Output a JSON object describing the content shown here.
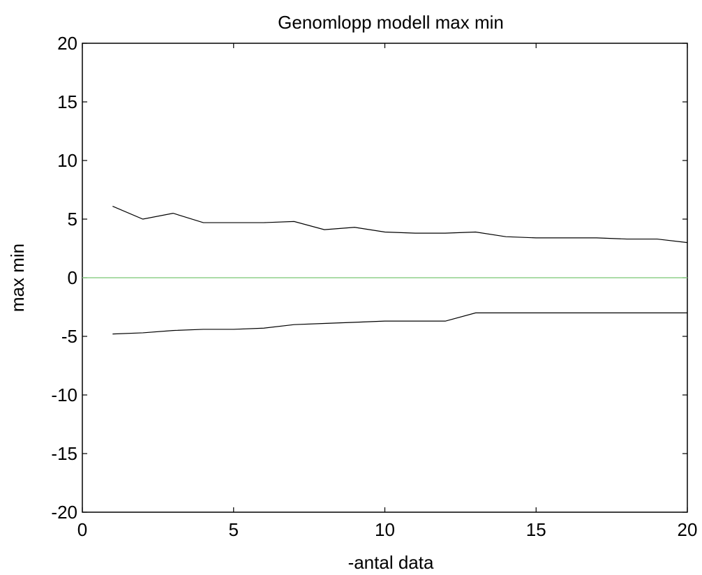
{
  "chart_data": {
    "type": "line",
    "title": "Genomlopp modell max min",
    "xlabel": "-antal data",
    "ylabel": "max min",
    "xlim": [
      0,
      20
    ],
    "ylim": [
      -20,
      20
    ],
    "xticks": [
      "0",
      "5",
      "10",
      "15",
      "20"
    ],
    "yticks": [
      "20",
      "15",
      "10",
      "5",
      "0",
      "-5",
      "-10",
      "-15",
      "-20"
    ],
    "grid": false,
    "legend": "none",
    "x": [
      1,
      2,
      3,
      4,
      5,
      6,
      7,
      8,
      9,
      10,
      11,
      12,
      13,
      14,
      15,
      16,
      17,
      18,
      19,
      20
    ],
    "series": [
      {
        "color": "#000000",
        "values": [
          6.1,
          5.0,
          5.5,
          4.7,
          4.7,
          4.7,
          4.8,
          4.1,
          4.3,
          3.9,
          3.8,
          3.8,
          3.9,
          3.5,
          3.4,
          3.4,
          3.4,
          3.3,
          3.3,
          3.0
        ]
      },
      {
        "color": "#000000",
        "values": [
          -4.8,
          -4.7,
          -4.5,
          -4.4,
          -4.4,
          -4.3,
          -4.0,
          -3.9,
          -3.8,
          -3.7,
          -3.7,
          -3.7,
          -3.0,
          -3.0,
          -3.0,
          -3.0,
          -3.0,
          -3.0,
          -3.0,
          -3.0
        ]
      },
      {
        "color": "#8fd18a",
        "x": [
          0,
          20
        ],
        "values": [
          0,
          0
        ]
      }
    ]
  }
}
